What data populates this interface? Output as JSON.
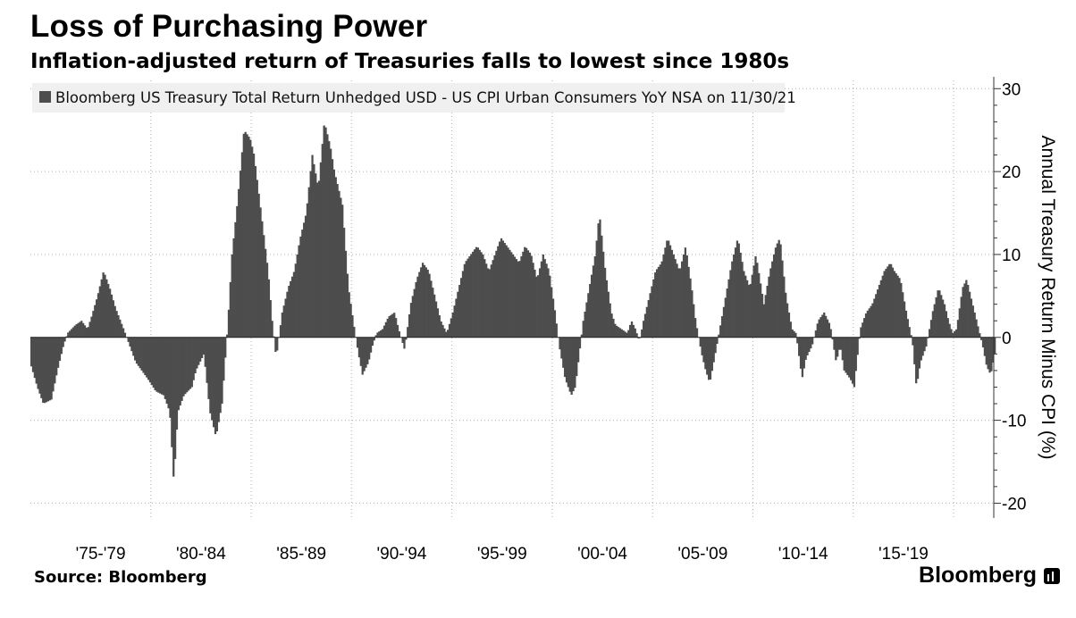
{
  "title": "Loss of Purchasing Power",
  "subtitle": "Inflation-adjusted return of Treasuries falls to lowest since 1980s",
  "source": "Source: Bloomberg",
  "brand": "Bloomberg",
  "colors": {
    "bar": "#4d4d4d",
    "grid": "#b0b0b0",
    "legend_bg": "#f0f0f0"
  },
  "chart_data": {
    "type": "bar",
    "title": "Loss of Purchasing Power",
    "legend": "Bloomberg US Treasury Total Return Unhedged USD - US CPI Urban Consumers YoY NSA on 11/30/21",
    "ylabel": "Annual Treasury Return Minus CPI (%)",
    "ylim": [
      -22,
      31
    ],
    "yticks": [
      -20,
      -10,
      0,
      10,
      20,
      30
    ],
    "ytick_labels": [
      "-20",
      "-10",
      "0",
      "10",
      "20",
      "30"
    ],
    "xlim": [
      1974.0,
      2022.0
    ],
    "xtick_labels": [
      "'75-'79",
      "'80-'84",
      "'85-'89",
      "'90-'94",
      "'95-'99",
      "'00-'04",
      "'05-'09",
      "'10-'14",
      "'15-'19"
    ],
    "x_gridlines": [
      1980,
      1985,
      1990,
      1995,
      2000,
      2005,
      2010,
      2015,
      2020
    ],
    "grid": true,
    "y_axis_position": "right",
    "legend_position": "top-left",
    "series": [
      {
        "name": "Bloomberg US Treasury Total Return Unhedged USD - US CPI Urban Consumers YoY NSA",
        "anchors": [
          [
            1974.0,
            -3.5
          ],
          [
            1974.3,
            -6.0
          ],
          [
            1974.6,
            -8.0
          ],
          [
            1975.0,
            -7.5
          ],
          [
            1975.3,
            -4.0
          ],
          [
            1975.6,
            -1.0
          ],
          [
            1975.8,
            0.5
          ],
          [
            1976.2,
            1.5
          ],
          [
            1976.5,
            2.0
          ],
          [
            1976.8,
            1.0
          ],
          [
            1977.0,
            2.5
          ],
          [
            1977.3,
            5.0
          ],
          [
            1977.6,
            8.0
          ],
          [
            1977.9,
            6.0
          ],
          [
            1978.2,
            3.5
          ],
          [
            1978.6,
            1.0
          ],
          [
            1978.9,
            -1.0
          ],
          [
            1979.2,
            -3.0
          ],
          [
            1979.5,
            -4.0
          ],
          [
            1979.8,
            -5.0
          ],
          [
            1980.2,
            -6.5
          ],
          [
            1980.6,
            -7.0
          ],
          [
            1980.9,
            -9.0
          ],
          [
            1981.1,
            -17.5
          ],
          [
            1981.3,
            -9.0
          ],
          [
            1981.6,
            -7.0
          ],
          [
            1982.0,
            -6.0
          ],
          [
            1982.2,
            -4.0
          ],
          [
            1982.6,
            -2.0
          ],
          [
            1982.9,
            -9.0
          ],
          [
            1983.2,
            -12.0
          ],
          [
            1983.5,
            -8.0
          ],
          [
            1983.8,
            2.0
          ],
          [
            1984.0,
            10.0
          ],
          [
            1984.3,
            17.0
          ],
          [
            1984.6,
            25.0
          ],
          [
            1984.9,
            24.0
          ],
          [
            1985.1,
            22.0
          ],
          [
            1985.5,
            14.0
          ],
          [
            1985.8,
            8.0
          ],
          [
            1986.0,
            2.0
          ],
          [
            1986.2,
            -2.5
          ],
          [
            1986.5,
            3.0
          ],
          [
            1986.8,
            6.0
          ],
          [
            1987.1,
            8.0
          ],
          [
            1987.4,
            12.0
          ],
          [
            1987.7,
            15.0
          ],
          [
            1988.0,
            22.0
          ],
          [
            1988.3,
            18.0
          ],
          [
            1988.6,
            26.0
          ],
          [
            1988.9,
            23.0
          ],
          [
            1989.1,
            20.0
          ],
          [
            1989.5,
            16.0
          ],
          [
            1989.8,
            6.0
          ],
          [
            1990.1,
            1.0
          ],
          [
            1990.3,
            -2.0
          ],
          [
            1990.5,
            -4.5
          ],
          [
            1990.8,
            -3.0
          ],
          [
            1991.0,
            -1.0
          ],
          [
            1991.2,
            0.5
          ],
          [
            1991.5,
            1.0
          ],
          [
            1991.8,
            2.5
          ],
          [
            1992.1,
            3.0
          ],
          [
            1992.3,
            1.0
          ],
          [
            1992.6,
            -1.5
          ],
          [
            1992.9,
            4.0
          ],
          [
            1993.2,
            7.0
          ],
          [
            1993.5,
            9.0
          ],
          [
            1993.8,
            8.0
          ],
          [
            1994.1,
            5.0
          ],
          [
            1994.4,
            2.0
          ],
          [
            1994.7,
            0.5
          ],
          [
            1995.0,
            3.0
          ],
          [
            1995.3,
            6.0
          ],
          [
            1995.6,
            9.0
          ],
          [
            1995.9,
            10.0
          ],
          [
            1996.2,
            11.0
          ],
          [
            1996.5,
            10.0
          ],
          [
            1996.8,
            8.0
          ],
          [
            1997.1,
            10.0
          ],
          [
            1997.4,
            12.0
          ],
          [
            1997.7,
            11.0
          ],
          [
            1998.0,
            10.0
          ],
          [
            1998.3,
            9.0
          ],
          [
            1998.6,
            11.0
          ],
          [
            1998.9,
            10.0
          ],
          [
            1999.2,
            7.0
          ],
          [
            1999.5,
            10.0
          ],
          [
            1999.8,
            8.0
          ],
          [
            2000.1,
            3.0
          ],
          [
            2000.3,
            -1.0
          ],
          [
            2000.6,
            -5.0
          ],
          [
            2000.9,
            -7.0
          ],
          [
            2001.1,
            -6.0
          ],
          [
            2001.3,
            -2.0
          ],
          [
            2001.5,
            2.0
          ],
          [
            2001.8,
            6.0
          ],
          [
            2002.1,
            10.0
          ],
          [
            2002.3,
            15.0
          ],
          [
            2002.6,
            8.0
          ],
          [
            2002.9,
            3.0
          ],
          [
            2003.1,
            1.5
          ],
          [
            2003.4,
            1.0
          ],
          [
            2003.7,
            0.5
          ],
          [
            2003.9,
            2.0
          ],
          [
            2004.1,
            1.0
          ],
          [
            2004.3,
            -0.5
          ],
          [
            2004.5,
            2.0
          ],
          [
            2004.8,
            5.0
          ],
          [
            2005.1,
            8.0
          ],
          [
            2005.4,
            9.0
          ],
          [
            2005.7,
            12.0
          ],
          [
            2006.0,
            10.0
          ],
          [
            2006.3,
            8.0
          ],
          [
            2006.6,
            11.0
          ],
          [
            2006.9,
            6.0
          ],
          [
            2007.1,
            2.0
          ],
          [
            2007.4,
            -2.0
          ],
          [
            2007.6,
            -4.0
          ],
          [
            2007.8,
            -5.5
          ],
          [
            2008.0,
            -3.0
          ],
          [
            2008.3,
            1.0
          ],
          [
            2008.6,
            5.0
          ],
          [
            2008.9,
            9.0
          ],
          [
            2009.2,
            12.0
          ],
          [
            2009.5,
            8.0
          ],
          [
            2009.8,
            6.0
          ],
          [
            2010.1,
            10.0
          ],
          [
            2010.3,
            7.0
          ],
          [
            2010.5,
            4.0
          ],
          [
            2010.8,
            8.0
          ],
          [
            2011.1,
            11.0
          ],
          [
            2011.3,
            12.0
          ],
          [
            2011.6,
            5.0
          ],
          [
            2011.9,
            1.0
          ],
          [
            2012.1,
            0.5
          ],
          [
            2012.4,
            -5.0
          ],
          [
            2012.6,
            -2.5
          ],
          [
            2012.9,
            -1.0
          ],
          [
            2013.2,
            2.0
          ],
          [
            2013.5,
            3.0
          ],
          [
            2013.8,
            1.5
          ],
          [
            2014.1,
            -3.0
          ],
          [
            2014.3,
            -1.0
          ],
          [
            2014.5,
            -4.0
          ],
          [
            2014.8,
            -5.0
          ],
          [
            2015.0,
            -6.0
          ],
          [
            2015.3,
            1.0
          ],
          [
            2015.6,
            3.0
          ],
          [
            2015.9,
            4.0
          ],
          [
            2016.2,
            6.0
          ],
          [
            2016.5,
            8.0
          ],
          [
            2016.8,
            9.0
          ],
          [
            2017.0,
            8.0
          ],
          [
            2017.3,
            7.0
          ],
          [
            2017.6,
            3.0
          ],
          [
            2017.9,
            -0.5
          ],
          [
            2018.1,
            -6.0
          ],
          [
            2018.3,
            -3.0
          ],
          [
            2018.6,
            -1.0
          ],
          [
            2018.9,
            3.0
          ],
          [
            2019.2,
            6.0
          ],
          [
            2019.5,
            4.0
          ],
          [
            2019.7,
            2.0
          ],
          [
            2019.9,
            0.5
          ],
          [
            2020.1,
            1.0
          ],
          [
            2020.4,
            6.0
          ],
          [
            2020.6,
            7.0
          ],
          [
            2020.8,
            5.0
          ],
          [
            2021.0,
            3.0
          ],
          [
            2021.2,
            1.0
          ],
          [
            2021.4,
            -1.0
          ],
          [
            2021.6,
            -3.5
          ],
          [
            2021.8,
            -4.5
          ],
          [
            2022.0,
            -2.0
          ]
        ]
      }
    ]
  }
}
